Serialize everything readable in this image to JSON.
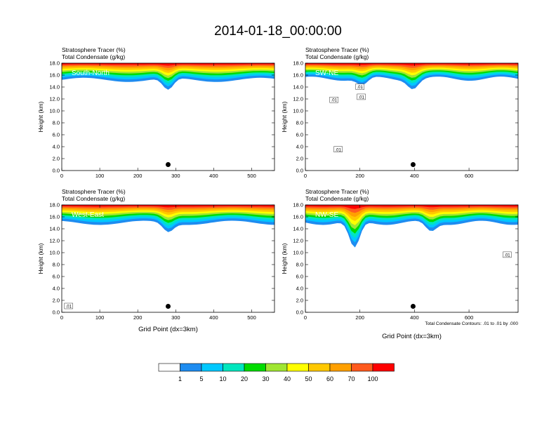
{
  "title": "2014-01-18_00:00:00",
  "colors": {
    "bands": [
      "#ffffff",
      "#1e8cf0",
      "#00c8ff",
      "#00e6be",
      "#00dc00",
      "#a0e632",
      "#ffff00",
      "#ffc800",
      "#ffa000",
      "#ff5a1e",
      "#ff0000"
    ],
    "contour": "#000000",
    "marker": "#000000"
  },
  "chart_data": [
    {
      "type": "heatmap",
      "label": "South-North",
      "header": [
        "Stratosphere Tracer   (%)",
        "Total Condensate   (g/kg)"
      ],
      "ylabel": "Height (km)",
      "xlabel": "",
      "xlim": [
        0,
        560
      ],
      "xticks": [
        "0",
        "100",
        "200",
        "300",
        "400",
        "500"
      ],
      "xtick_values": [
        0,
        100,
        200,
        300,
        400,
        500
      ],
      "ylim": [
        0,
        18
      ],
      "yticks": [
        "0.0",
        "2.0",
        "4.0",
        "6.0",
        "8.0",
        "10.0",
        "12.0",
        "14.0",
        "16.0",
        "18.0"
      ],
      "tropopause_km": 15.2,
      "marker": {
        "x": 280,
        "y": 1.0
      },
      "dips": [
        {
          "x": 280,
          "depth": 2.0
        }
      ],
      "contour_labels": []
    },
    {
      "type": "heatmap",
      "label": "SW-NE",
      "header": [
        "Stratosphere Tracer   (%)",
        "Total Condensate   (g/kg)"
      ],
      "ylabel": "Height (km)",
      "xlabel": "",
      "xlim": [
        0,
        780
      ],
      "xticks": [
        "0",
        "200",
        "400",
        "600"
      ],
      "xtick_values": [
        0,
        200,
        400,
        600
      ],
      "ylim": [
        0,
        18
      ],
      "yticks": [
        "0.0",
        "2.0",
        "4.0",
        "6.0",
        "8.0",
        "10.0",
        "12.0",
        "14.0",
        "16.0",
        "18.0"
      ],
      "tropopause_km": 15.4,
      "marker": {
        "x": 395,
        "y": 1.0
      },
      "dips": [
        {
          "x": 395,
          "depth": 1.5
        },
        {
          "x": 210,
          "depth": 1.2
        }
      ],
      "contour_labels": [
        {
          "text": ".01",
          "x": 205,
          "y": 12.3
        },
        {
          "text": ".01",
          "x": 105,
          "y": 11.8
        },
        {
          "text": ".01",
          "x": 200,
          "y": 14.0
        },
        {
          "text": ".01",
          "x": 120,
          "y": 3.5
        }
      ]
    },
    {
      "type": "heatmap",
      "label": "West-East",
      "header": [
        "Stratosphere Tracer   (%)",
        "Total Condensate   (g/kg)"
      ],
      "ylabel": "Height (km)",
      "xlabel": "Grid Point (dx=3km)",
      "xlim": [
        0,
        560
      ],
      "xticks": [
        "0",
        "100",
        "200",
        "300",
        "400",
        "500"
      ],
      "xtick_values": [
        0,
        100,
        200,
        300,
        400,
        500
      ],
      "ylim": [
        0,
        18
      ],
      "yticks": [
        "0.0",
        "2.0",
        "4.0",
        "6.0",
        "8.0",
        "10.0",
        "12.0",
        "14.0",
        "16.0",
        "18.0"
      ],
      "tropopause_km": 15.0,
      "marker": {
        "x": 280,
        "y": 1.0
      },
      "dips": [
        {
          "x": 280,
          "depth": 1.5
        }
      ],
      "contour_labels": [
        {
          "text": ".01",
          "x": 18,
          "y": 1.0
        }
      ]
    },
    {
      "type": "heatmap",
      "label": "NW-SE",
      "header": [
        "Stratosphere Tracer   (%)",
        "Total Condensate   (g/kg)"
      ],
      "ylabel": "Height (km)",
      "xlabel": "Grid Point (dx=3km)",
      "xlim": [
        0,
        780
      ],
      "xticks": [
        "0",
        "200",
        "400",
        "600"
      ],
      "xtick_values": [
        0,
        200,
        400,
        600
      ],
      "ylim": [
        0,
        18
      ],
      "yticks": [
        "0.0",
        "2.0",
        "4.0",
        "6.0",
        "8.0",
        "10.0",
        "12.0",
        "14.0",
        "16.0",
        "18.0"
      ],
      "tropopause_km": 15.0,
      "marker": {
        "x": 395,
        "y": 1.0
      },
      "dips": [
        {
          "x": 180,
          "depth": 4.5
        },
        {
          "x": 460,
          "depth": 1.5
        }
      ],
      "contour_labels": [
        {
          "text": ".01",
          "x": 740,
          "y": 9.6
        }
      ],
      "footnote": "Total Condensate Contours: .01 to .01 by .000"
    }
  ],
  "legend": {
    "labels": [
      "1",
      "5",
      "10",
      "20",
      "30",
      "40",
      "50",
      "60",
      "70",
      "100"
    ]
  }
}
